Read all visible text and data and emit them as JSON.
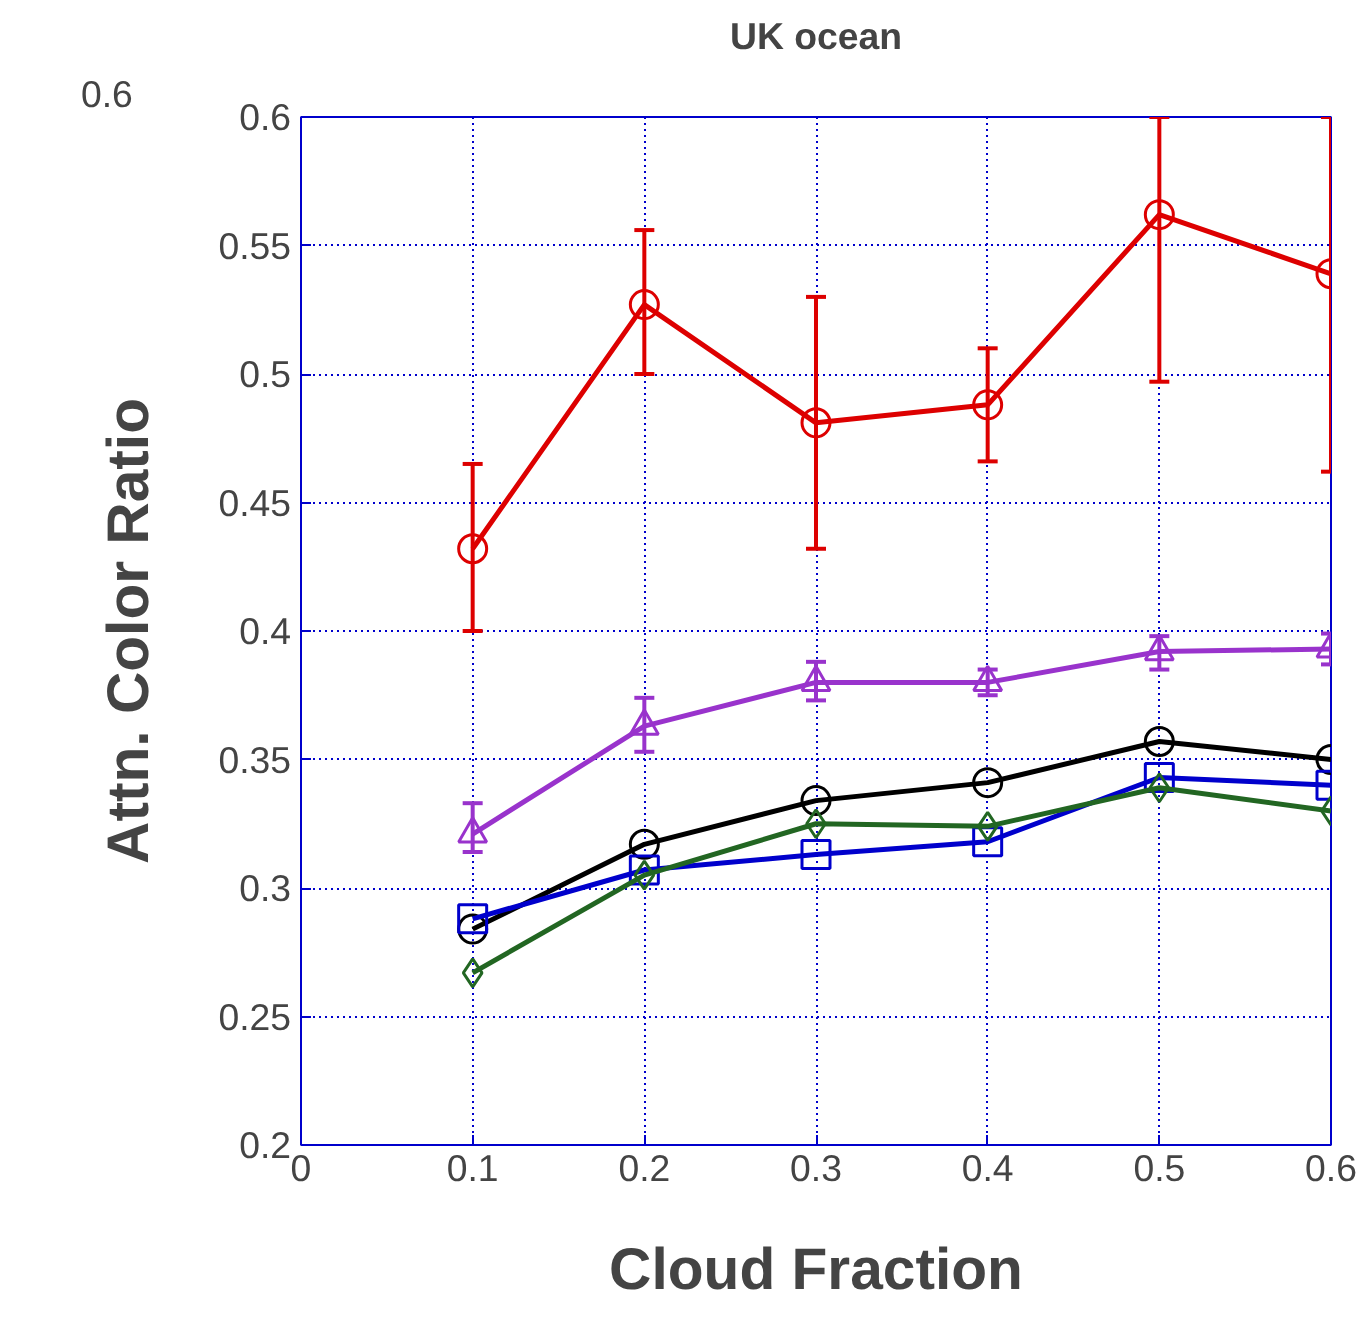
{
  "chart_data": {
    "type": "line",
    "title": "UK ocean",
    "xlabel": "Cloud Fraction",
    "ylabel": "Attn. Color Ratio",
    "annotations": [
      "0.6"
    ],
    "x": [
      0.1,
      0.2,
      0.3,
      0.4,
      0.5,
      0.6
    ],
    "xlim": [
      0,
      0.6
    ],
    "xticks": [
      0,
      0.1,
      0.2,
      0.3,
      0.4,
      0.5,
      0.6
    ],
    "ylim": [
      0.2,
      0.6
    ],
    "yticks": [
      0.2,
      0.25,
      0.3,
      0.35,
      0.4,
      0.45,
      0.5,
      0.55,
      0.6
    ],
    "grid": true,
    "line_style": "solid",
    "series": [
      {
        "color": "#dd0000",
        "marker": "circle",
        "values": [
          0.432,
          0.527,
          0.481,
          0.488,
          0.562,
          0.539
        ],
        "errors": [
          [
            0.4,
            0.465
          ],
          [
            0.5,
            0.556
          ],
          [
            0.432,
            0.53
          ],
          [
            0.466,
            0.51
          ],
          [
            0.497,
            0.6
          ],
          [
            0.462,
            0.6
          ]
        ]
      },
      {
        "color": "#9933cc",
        "marker": "triangle",
        "values": [
          0.321,
          0.363,
          0.38,
          0.38,
          0.392,
          0.393
        ],
        "errors": [
          [
            0.314,
            0.333
          ],
          [
            0.353,
            0.374
          ],
          [
            0.373,
            0.388
          ],
          [
            0.375,
            0.385
          ],
          [
            0.385,
            0.398
          ],
          [
            0.387,
            0.399
          ]
        ]
      },
      {
        "color": "#000000",
        "marker": "circle",
        "values": [
          0.284,
          0.317,
          0.334,
          0.341,
          0.357,
          0.35
        ]
      },
      {
        "color": "#0000cc",
        "marker": "square",
        "values": [
          0.288,
          0.307,
          0.313,
          0.318,
          0.343,
          0.34
        ]
      },
      {
        "color": "#226622",
        "marker": "diamond",
        "values": [
          0.267,
          0.305,
          0.325,
          0.324,
          0.339,
          0.33
        ]
      }
    ]
  }
}
